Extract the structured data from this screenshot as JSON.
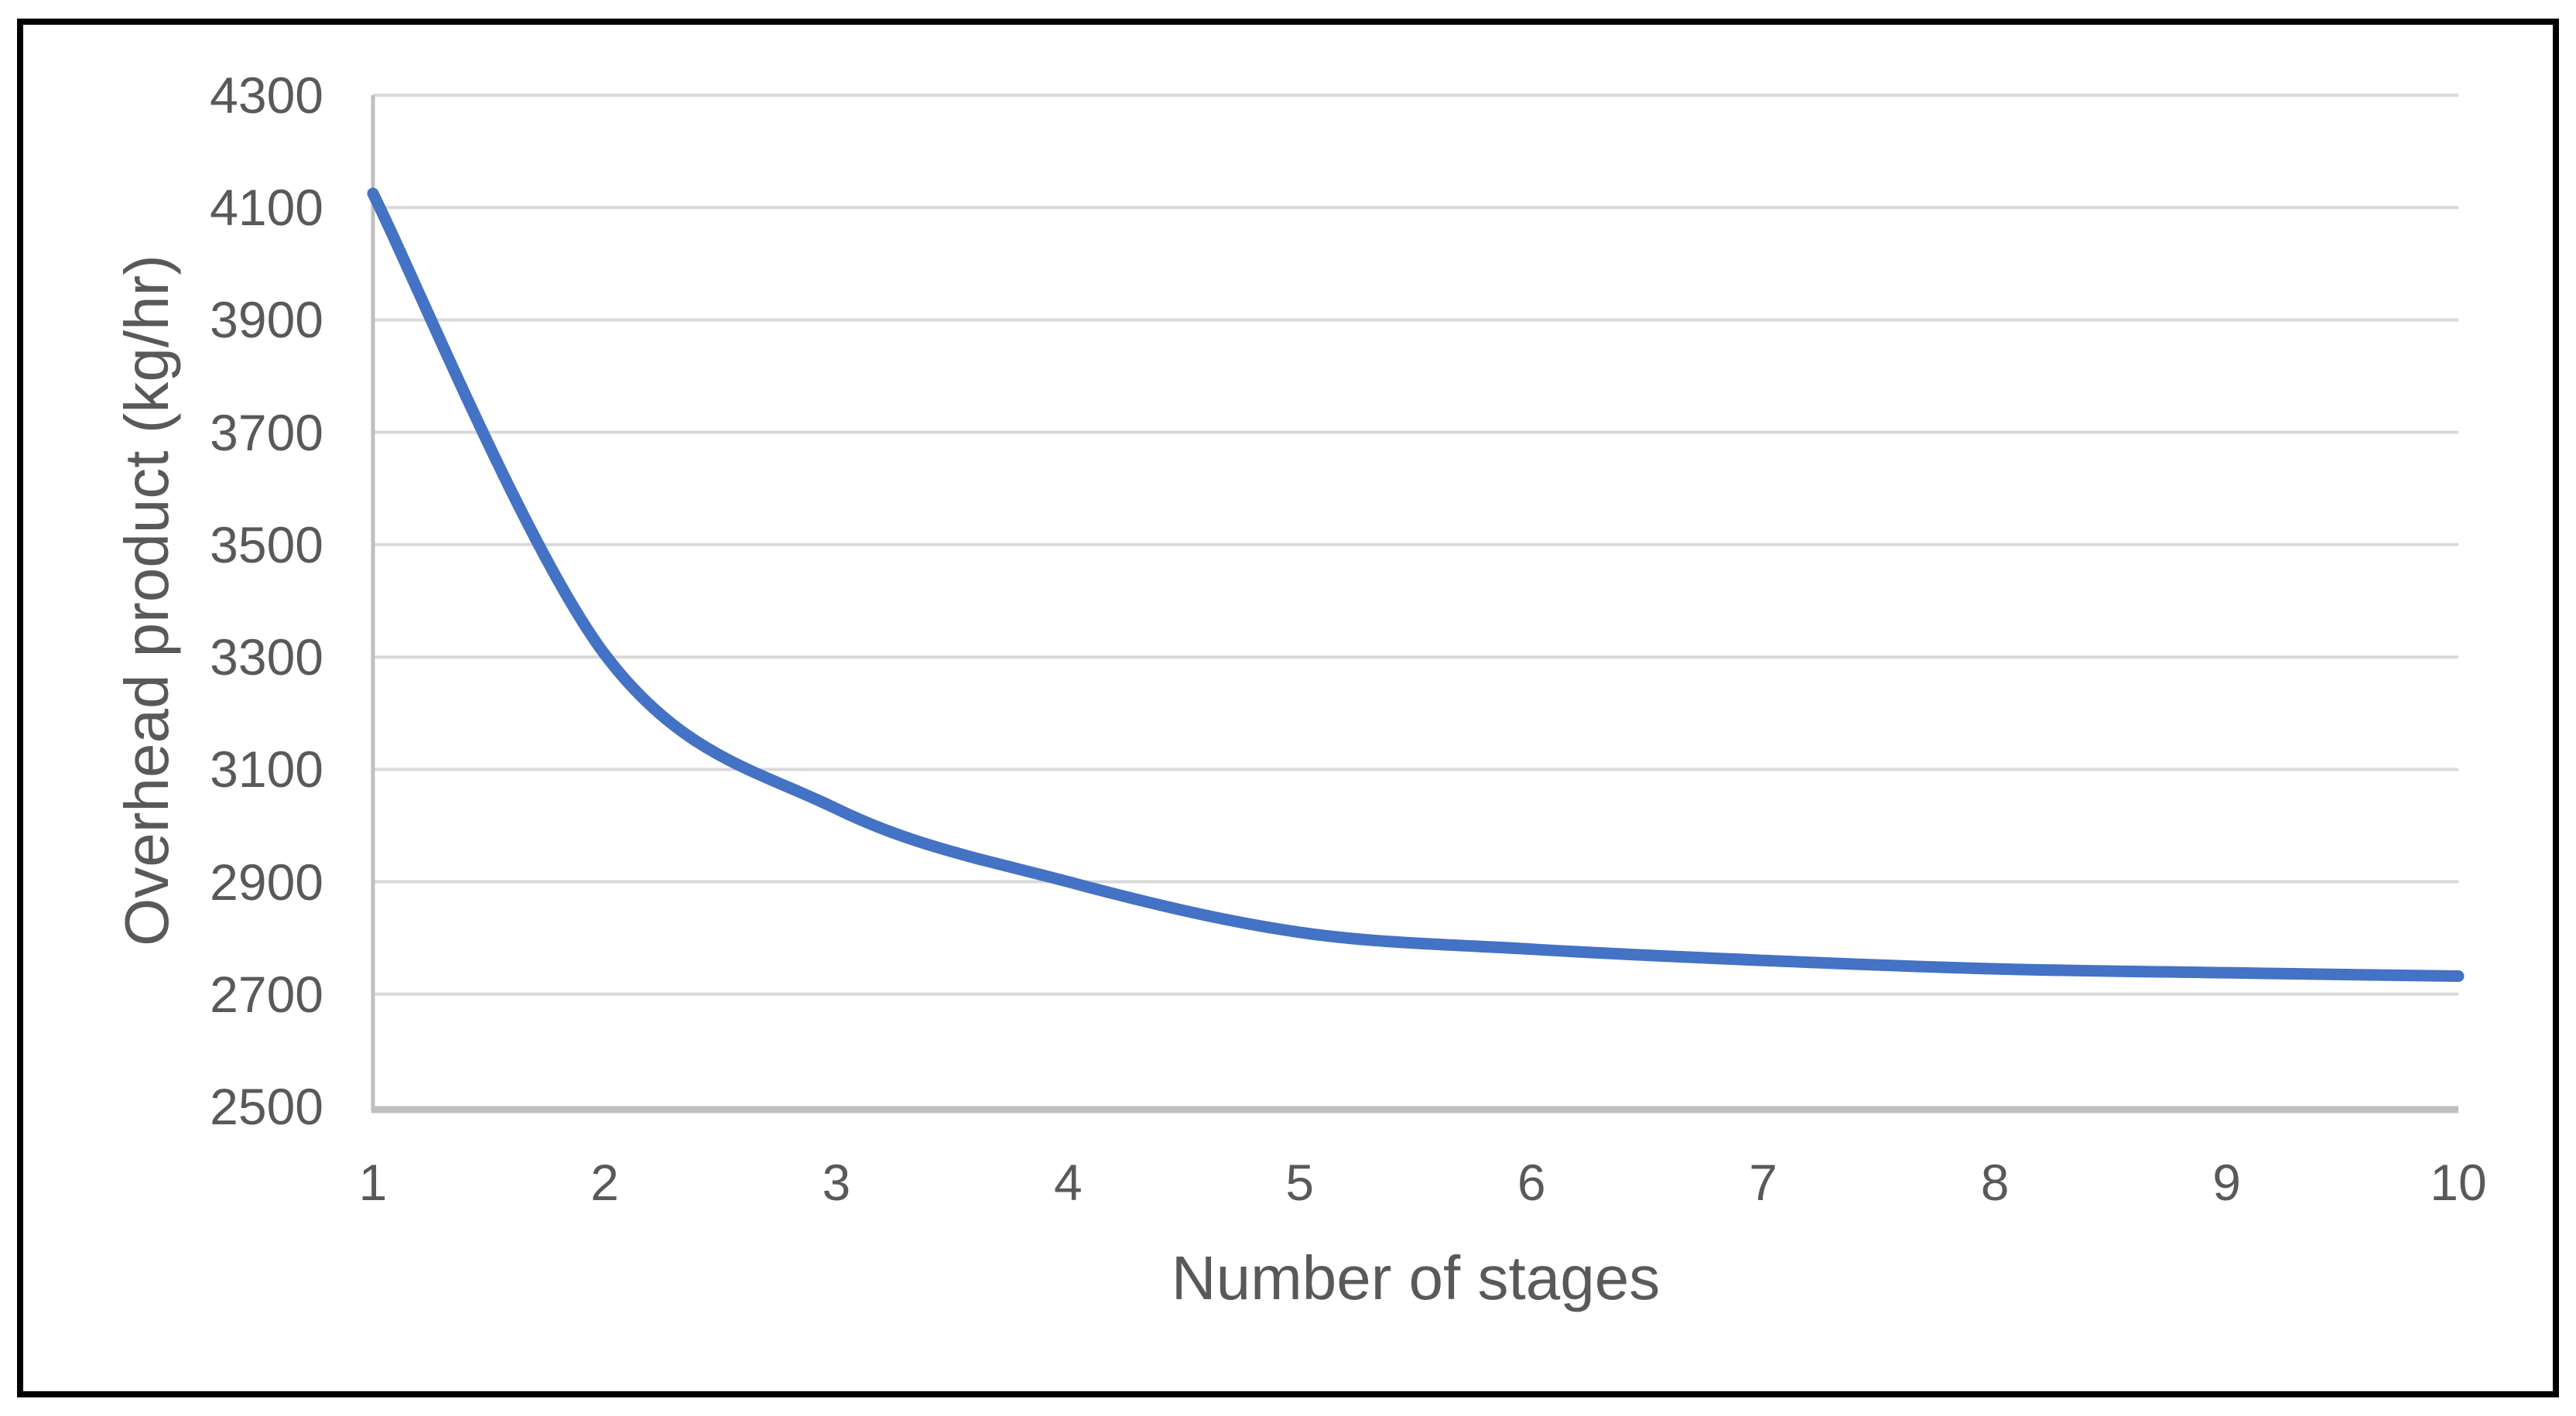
{
  "chart_data": {
    "type": "line",
    "title": "",
    "xlabel": "Number of stages",
    "ylabel": "Overhead product (kg/hr)",
    "x": [
      1,
      2,
      3,
      4,
      5,
      6,
      7,
      8,
      9,
      10
    ],
    "series": [
      {
        "name": "Overhead product",
        "values": [
          4125,
          3305,
          3030,
          2900,
          2810,
          2780,
          2760,
          2745,
          2738,
          2732
        ]
      }
    ],
    "xlim": [
      1,
      10
    ],
    "ylim": [
      2500,
      4300
    ],
    "yticks": [
      "2500",
      "2700",
      "2900",
      "3100",
      "3300",
      "3500",
      "3700",
      "3900",
      "4100",
      "4300"
    ],
    "xticks": [
      "1",
      "2",
      "3",
      "4",
      "5",
      "6",
      "7",
      "8",
      "9",
      "10"
    ],
    "grid": "horizontal",
    "legend_position": "none",
    "smooth_line": true,
    "line_color": "#4472C4",
    "gridline_color": "#D9D9D9",
    "axis_line_color": "#BFBFBF",
    "text_color": "#595959",
    "background_color": "#FFFFFF",
    "border_color": "#000000"
  }
}
